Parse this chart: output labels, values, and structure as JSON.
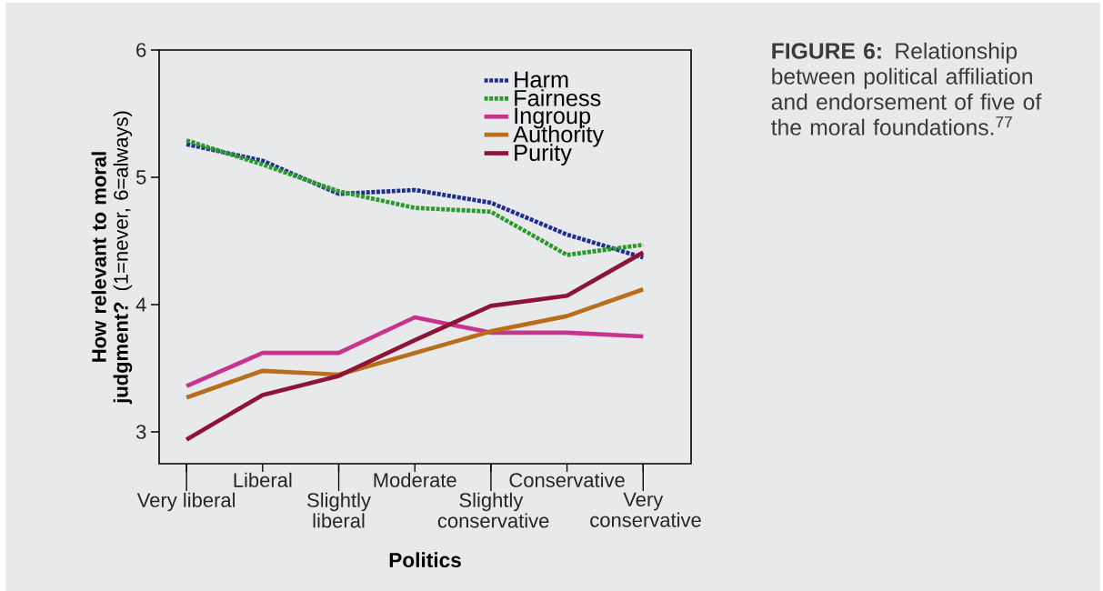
{
  "chart_data": {
    "type": "line",
    "title": "**FIGURE 6:** Relationship between political affiliation and endorsement of five of the moral foundations.$^{77}$",
    "xlabel": "Politics",
    "ylabel": "**How relevant to moral judgment?** (1=never, 6=always)",
    "categories": [
      "Very liberal",
      "Liberal",
      "Slightly liberal",
      "Moderate",
      "Slightly conservative",
      "Conservative",
      "Very conservative"
    ],
    "ylim": [
      2.75,
      6
    ],
    "yticks": [
      3,
      4,
      5,
      6
    ],
    "legend": "top right",
    "grid": false,
    "marker": "none",
    "series": [
      {
        "name": "Harm",
        "color": "#1f2f8f",
        "line_style": "dotted",
        "values": [
          5.26,
          5.13,
          4.87,
          4.9,
          4.8,
          4.55,
          4.37
        ]
      },
      {
        "name": "Fairness",
        "color": "#2a9a2a",
        "line_style": "dotted",
        "values": [
          5.29,
          5.1,
          4.89,
          4.76,
          4.73,
          4.39,
          4.47
        ]
      },
      {
        "name": "Ingroup",
        "color": "#c8338f",
        "line_style": "solid",
        "values": [
          3.36,
          3.62,
          3.62,
          3.9,
          3.78,
          3.78,
          3.75
        ]
      },
      {
        "name": "Authority",
        "color": "#b86e1a",
        "line_style": "solid",
        "values": [
          3.27,
          3.48,
          3.45,
          3.62,
          3.79,
          3.91,
          4.12
        ]
      },
      {
        "name": "Purity",
        "color": "#8c1438",
        "line_style": "solid",
        "values": [
          2.94,
          3.29,
          3.44,
          3.72,
          3.99,
          4.07,
          4.41
        ]
      }
    ]
  }
}
